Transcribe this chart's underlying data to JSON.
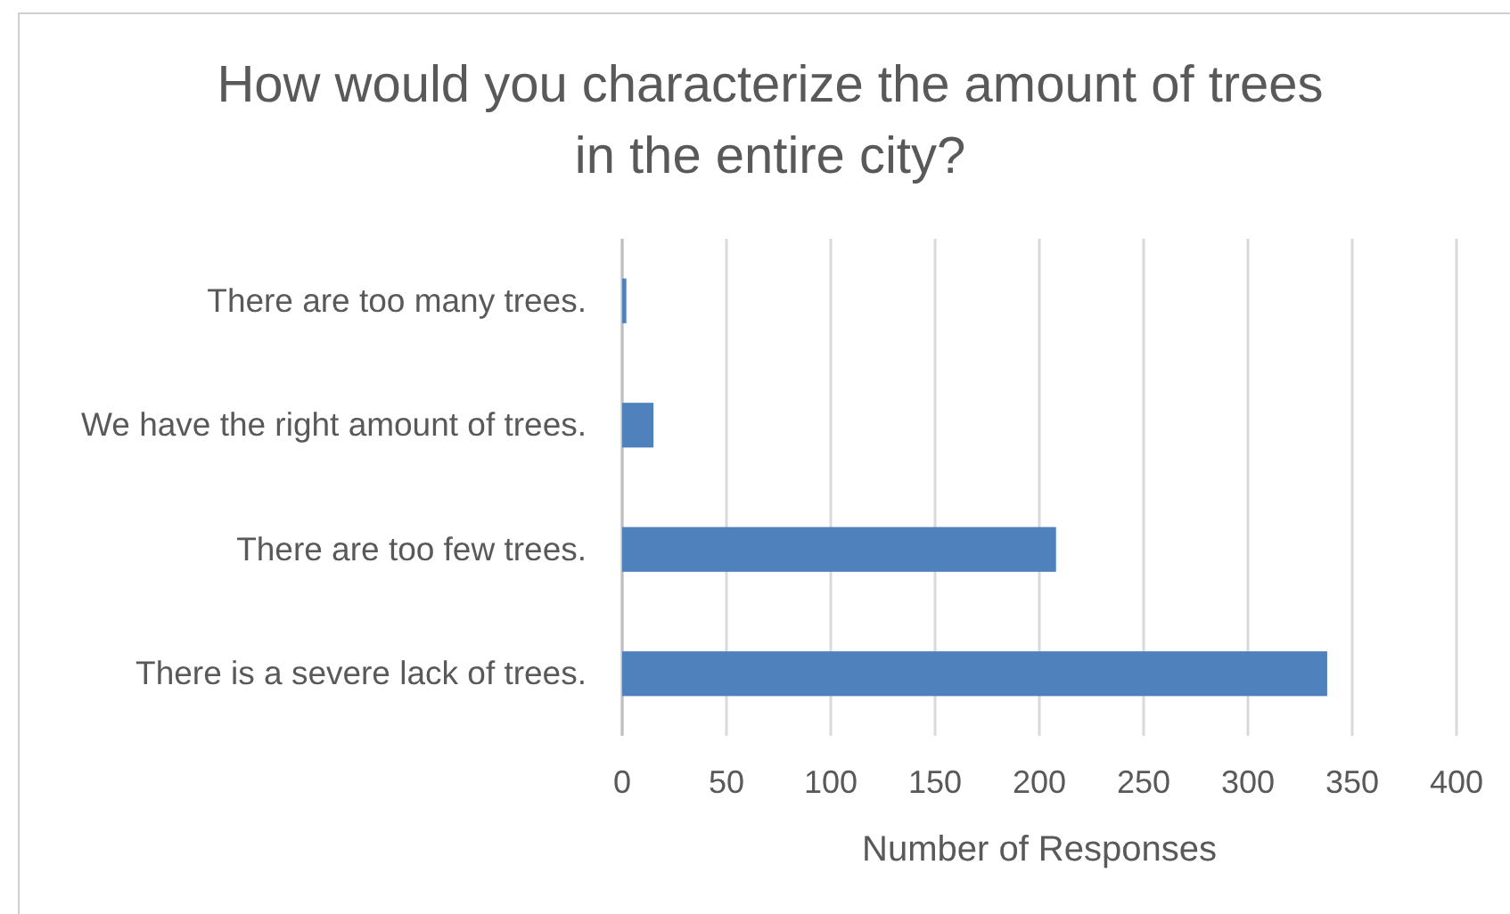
{
  "chart_data": {
    "type": "bar",
    "orientation": "horizontal",
    "title": "How would you characterize the amount of trees\nin the entire city?",
    "xlabel": "Number of Responses",
    "categories": [
      "There are too many trees.",
      "We have the right amount of trees.",
      "There are too few trees.",
      "There is a severe lack of trees."
    ],
    "series": [
      {
        "color": "#4f81bd",
        "values": [
          2,
          15,
          208,
          338
        ]
      }
    ],
    "xlim": [
      0,
      400
    ],
    "xticks": [
      0,
      50,
      100,
      150,
      200,
      250,
      300,
      350,
      400
    ],
    "grid": "x"
  }
}
